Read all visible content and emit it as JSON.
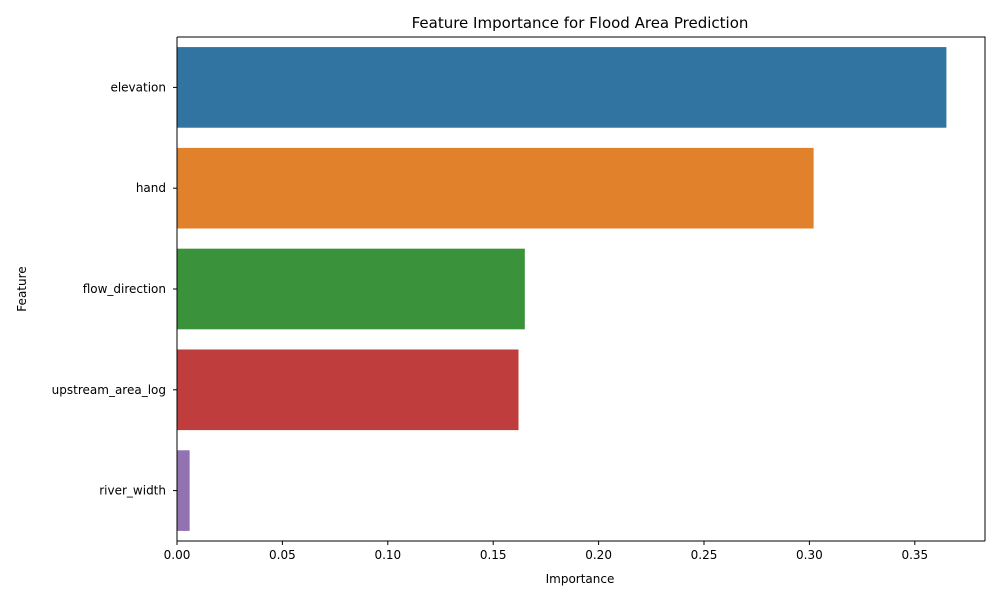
{
  "chart_data": {
    "type": "bar",
    "orientation": "horizontal",
    "title": "Feature Importance for Flood Area Prediction",
    "xlabel": "Importance",
    "ylabel": "Feature",
    "categories": [
      "elevation",
      "hand",
      "flow_direction",
      "upstream_area_log",
      "river_width"
    ],
    "values": [
      0.365,
      0.302,
      0.165,
      0.162,
      0.006
    ],
    "colors": [
      "#3274a1",
      "#e1812c",
      "#3a923a",
      "#c03d3e",
      "#9372b2"
    ],
    "xlim": [
      0,
      0.3833
    ],
    "xticks": [
      0.0,
      0.05,
      0.1,
      0.15,
      0.2,
      0.25,
      0.3,
      0.35
    ],
    "xtick_labels": [
      "0.00",
      "0.05",
      "0.10",
      "0.15",
      "0.20",
      "0.25",
      "0.30",
      "0.35"
    ],
    "grid": false,
    "legend": false
  }
}
